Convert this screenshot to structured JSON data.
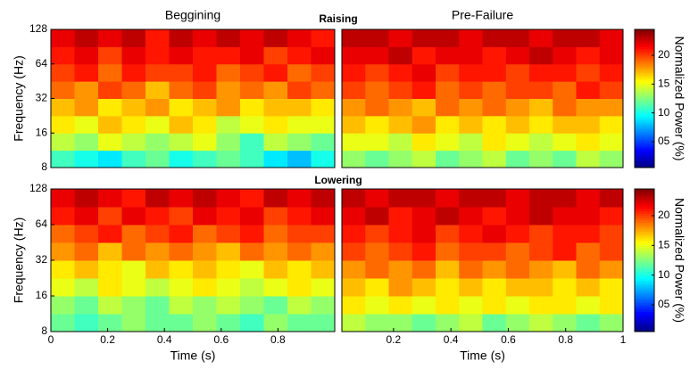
{
  "chart_data": [
    {
      "type": "heatmap",
      "title": "Beggining",
      "ylabel": "Frequency (Hz)",
      "xlim": [
        0,
        1
      ],
      "ylim": [
        8,
        128
      ],
      "ylog": true,
      "yticks": [
        8,
        16,
        32,
        64,
        128
      ],
      "z": [
        [
          11,
          10,
          9,
          11,
          12,
          10,
          11,
          12,
          11,
          9,
          8,
          10
        ],
        [
          14,
          13,
          15,
          14,
          13,
          14,
          15,
          13,
          11,
          14,
          13,
          12
        ],
        [
          16,
          15,
          17,
          16,
          15,
          17,
          16,
          14,
          15,
          16,
          15,
          15
        ],
        [
          17,
          18,
          16,
          17,
          18,
          16,
          17,
          18,
          16,
          17,
          17,
          16
        ],
        [
          19,
          18,
          20,
          19,
          17,
          19,
          20,
          18,
          19,
          18,
          20,
          19
        ],
        [
          20,
          21,
          19,
          21,
          20,
          20,
          21,
          19,
          20,
          21,
          19,
          20
        ],
        [
          21,
          22,
          20,
          22,
          21,
          22,
          21,
          21,
          22,
          20,
          21,
          22
        ],
        [
          22,
          23,
          22,
          23,
          21,
          23,
          22,
          23,
          22,
          23,
          22,
          21
        ]
      ]
    },
    {
      "type": "heatmap",
      "title": "Pre-Failure",
      "xlim": [
        0.02,
        1
      ],
      "ylim": [
        8,
        128
      ],
      "ylog": true,
      "z": [
        [
          13,
          12,
          13,
          14,
          12,
          13,
          14,
          12,
          13,
          12,
          14,
          13
        ],
        [
          15,
          15,
          14,
          16,
          15,
          14,
          16,
          15,
          14,
          15,
          16,
          15
        ],
        [
          17,
          16,
          17,
          18,
          16,
          17,
          16,
          17,
          16,
          17,
          17,
          16
        ],
        [
          18,
          19,
          18,
          17,
          19,
          18,
          19,
          18,
          17,
          19,
          18,
          18
        ],
        [
          20,
          19,
          20,
          21,
          19,
          20,
          19,
          20,
          20,
          19,
          21,
          20
        ],
        [
          21,
          20,
          21,
          22,
          20,
          21,
          21,
          20,
          21,
          21,
          20,
          21
        ],
        [
          22,
          22,
          23,
          21,
          22,
          22,
          21,
          22,
          23,
          22,
          21,
          22
        ],
        [
          23,
          23,
          22,
          23,
          23,
          22,
          23,
          23,
          22,
          23,
          23,
          22
        ]
      ]
    },
    {
      "type": "heatmap",
      "ylabel": "Frequency (Hz)",
      "xlabel": "Time (s)",
      "xlim": [
        0,
        1
      ],
      "ylim": [
        8,
        128
      ],
      "ylog": true,
      "yticks": [
        8,
        16,
        32,
        64,
        128
      ],
      "xticks": [
        0,
        0.2,
        0.4,
        0.6,
        0.8
      ],
      "z": [
        [
          12,
          11,
          12,
          13,
          12,
          12,
          13,
          12,
          11,
          13,
          12,
          12
        ],
        [
          13,
          12,
          14,
          13,
          12,
          14,
          13,
          14,
          13,
          12,
          14,
          13
        ],
        [
          15,
          14,
          16,
          15,
          14,
          15,
          16,
          15,
          14,
          15,
          16,
          15
        ],
        [
          16,
          17,
          16,
          15,
          17,
          16,
          17,
          16,
          15,
          17,
          16,
          17
        ],
        [
          18,
          19,
          17,
          19,
          18,
          19,
          18,
          17,
          19,
          18,
          19,
          18
        ],
        [
          19,
          20,
          21,
          19,
          20,
          21,
          19,
          20,
          21,
          19,
          20,
          20
        ],
        [
          21,
          22,
          20,
          22,
          21,
          20,
          22,
          21,
          22,
          20,
          21,
          22
        ],
        [
          22,
          23,
          22,
          21,
          23,
          22,
          23,
          22,
          21,
          23,
          22,
          23
        ]
      ]
    },
    {
      "type": "heatmap",
      "xlabel": "Time (s)",
      "xlim": [
        0.02,
        1
      ],
      "ylim": [
        8,
        128
      ],
      "ylog": true,
      "xticks": [
        0.2,
        0.4,
        0.6,
        0.8,
        1
      ],
      "z": [
        [
          14,
          13,
          13,
          12,
          13,
          14,
          12,
          13,
          14,
          13,
          12,
          13
        ],
        [
          16,
          15,
          16,
          15,
          16,
          15,
          16,
          15,
          16,
          16,
          15,
          16
        ],
        [
          17,
          16,
          18,
          17,
          16,
          17,
          16,
          17,
          17,
          16,
          17,
          16
        ],
        [
          18,
          19,
          18,
          19,
          17,
          19,
          18,
          19,
          18,
          17,
          19,
          18
        ],
        [
          20,
          19,
          20,
          21,
          19,
          20,
          20,
          19,
          20,
          21,
          19,
          20
        ],
        [
          21,
          20,
          21,
          22,
          20,
          21,
          22,
          21,
          20,
          21,
          21,
          20
        ],
        [
          22,
          23,
          21,
          22,
          23,
          22,
          21,
          22,
          23,
          22,
          22,
          21
        ],
        [
          23,
          22,
          23,
          23,
          22,
          23,
          23,
          22,
          23,
          23,
          22,
          23
        ]
      ]
    }
  ],
  "row_titles": [
    "Raising",
    "Lowering"
  ],
  "colorbar": {
    "label": "Normalized Power (%)",
    "colormap": "jet",
    "clim": [
      0.5,
      24.5
    ],
    "ticks": [
      {
        "value": 5,
        "label": "05"
      },
      10,
      15,
      20
    ]
  }
}
